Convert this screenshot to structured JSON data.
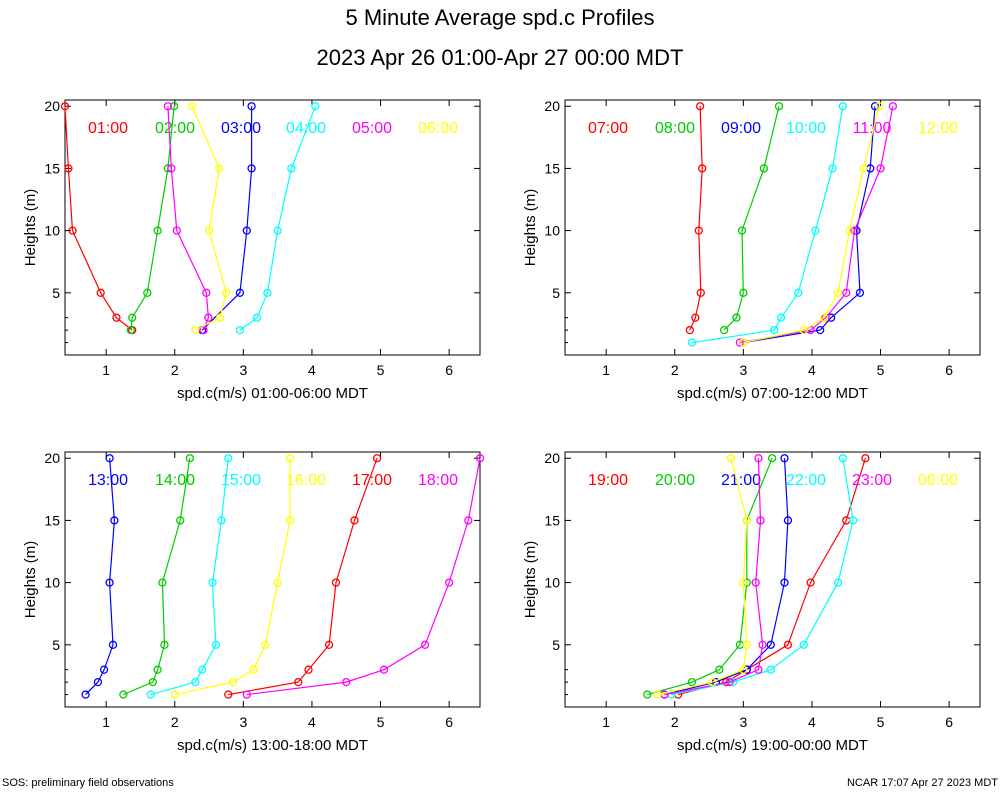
{
  "title": "5 Minute Average spd.c Profiles",
  "subtitle": "2023 Apr 26 01:00-Apr 27 00:00 MDT",
  "footer_left": "SOS: preliminary field observations",
  "footer_right": "NCAR 17:07 Apr 27 2023 MDT",
  "colors": {
    "red": "#ff0000",
    "green": "#00cc00",
    "blue": "#0000ff",
    "cyan": "#00ffff",
    "magenta": "#ff00ff",
    "yellow": "#ffff00"
  },
  "chart_data": [
    {
      "type": "line",
      "xlabel": "spd.c(m/s) 01:00-06:00 MDT",
      "ylabel": "Heights (m)",
      "xlim": [
        0.4,
        6.45
      ],
      "ylim": [
        0,
        20.5
      ],
      "xticks": [
        1,
        2,
        3,
        4,
        5,
        6
      ],
      "yticks": [
        5,
        10,
        15,
        20
      ],
      "heights": [
        1,
        2,
        3,
        5,
        10,
        15,
        20
      ],
      "series": [
        {
          "name": "01:00",
          "color": "#ff0000",
          "points": [
            [
              1.38,
              2
            ],
            [
              1.15,
              3
            ],
            [
              0.92,
              5
            ],
            [
              0.51,
              10
            ],
            [
              0.45,
              15
            ],
            [
              0.4,
              20
            ]
          ]
        },
        {
          "name": "02:00",
          "color": "#00cc00",
          "points": [
            [
              1.36,
              2
            ],
            [
              1.38,
              3
            ],
            [
              1.6,
              5
            ],
            [
              1.75,
              10
            ],
            [
              1.9,
              15
            ],
            [
              1.99,
              20
            ]
          ]
        },
        {
          "name": "03:00",
          "color": "#0000ff",
          "points": [
            [
              2.4,
              2
            ],
            [
              2.95,
              5
            ],
            [
              3.05,
              10
            ],
            [
              3.12,
              15
            ],
            [
              3.12,
              20
            ]
          ]
        },
        {
          "name": "04:00",
          "color": "#00ffff",
          "points": [
            [
              2.95,
              2
            ],
            [
              3.2,
              3
            ],
            [
              3.35,
              5
            ],
            [
              3.5,
              10
            ],
            [
              3.7,
              15
            ],
            [
              4.05,
              20
            ]
          ]
        },
        {
          "name": "05:00",
          "color": "#ff00ff",
          "points": [
            [
              2.42,
              2
            ],
            [
              2.49,
              3
            ],
            [
              2.46,
              5
            ],
            [
              2.03,
              10
            ],
            [
              1.95,
              15
            ],
            [
              1.9,
              20
            ]
          ]
        },
        {
          "name": "06:00",
          "color": "#ffff00",
          "points": [
            [
              2.3,
              2
            ],
            [
              2.66,
              3
            ],
            [
              2.75,
              5
            ],
            [
              2.5,
              10
            ],
            [
              2.65,
              15
            ],
            [
              2.25,
              20
            ]
          ]
        }
      ]
    },
    {
      "type": "line",
      "xlabel": "spd.c(m/s) 07:00-12:00 MDT",
      "ylabel": "Heights (m)",
      "xlim": [
        0.4,
        6.45
      ],
      "ylim": [
        0,
        20.5
      ],
      "xticks": [
        1,
        2,
        3,
        4,
        5,
        6
      ],
      "yticks": [
        5,
        10,
        15,
        20
      ],
      "heights": [
        1,
        2,
        3,
        5,
        10,
        15,
        20
      ],
      "series": [
        {
          "name": "07:00",
          "color": "#ff0000",
          "points": [
            [
              2.22,
              2
            ],
            [
              2.3,
              3
            ],
            [
              2.38,
              5
            ],
            [
              2.35,
              10
            ],
            [
              2.4,
              15
            ],
            [
              2.37,
              20
            ]
          ]
        },
        {
          "name": "08:00",
          "color": "#00cc00",
          "points": [
            [
              2.72,
              2
            ],
            [
              2.9,
              3
            ],
            [
              3.0,
              5
            ],
            [
              2.98,
              10
            ],
            [
              3.3,
              15
            ],
            [
              3.52,
              20
            ]
          ]
        },
        {
          "name": "09:00",
          "color": "#0000ff",
          "points": [
            [
              3.0,
              1
            ],
            [
              4.12,
              2
            ],
            [
              4.28,
              3
            ],
            [
              4.7,
              5
            ],
            [
              4.65,
              10
            ],
            [
              4.85,
              15
            ],
            [
              4.92,
              20
            ]
          ]
        },
        {
          "name": "10:00",
          "color": "#00ffff",
          "points": [
            [
              2.25,
              1
            ],
            [
              3.45,
              2
            ],
            [
              3.55,
              3
            ],
            [
              3.8,
              5
            ],
            [
              4.05,
              10
            ],
            [
              4.3,
              15
            ],
            [
              4.45,
              20
            ]
          ]
        },
        {
          "name": "11:00",
          "color": "#ff00ff",
          "points": [
            [
              2.95,
              1
            ],
            [
              3.98,
              2
            ],
            [
              4.2,
              3
            ],
            [
              4.5,
              5
            ],
            [
              4.62,
              10
            ],
            [
              5.0,
              15
            ],
            [
              5.18,
              20
            ]
          ]
        },
        {
          "name": "12:00",
          "color": "#ffff00",
          "points": [
            [
              3.0,
              1
            ],
            [
              3.88,
              2
            ],
            [
              4.18,
              3
            ],
            [
              4.38,
              5
            ],
            [
              4.55,
              10
            ],
            [
              4.75,
              15
            ],
            [
              4.98,
              20
            ]
          ]
        }
      ]
    },
    {
      "type": "line",
      "xlabel": "spd.c(m/s) 13:00-18:00 MDT",
      "ylabel": "Heights (m)",
      "xlim": [
        0.4,
        6.45
      ],
      "ylim": [
        0,
        20.5
      ],
      "xticks": [
        1,
        2,
        3,
        4,
        5,
        6
      ],
      "yticks": [
        5,
        10,
        15,
        20
      ],
      "heights": [
        1,
        2,
        3,
        5,
        10,
        15,
        20
      ],
      "series": [
        {
          "name": "13:00",
          "color": "#0000ff",
          "points": [
            [
              0.7,
              1
            ],
            [
              0.88,
              2
            ],
            [
              0.97,
              3
            ],
            [
              1.1,
              5
            ],
            [
              1.05,
              10
            ],
            [
              1.12,
              15
            ],
            [
              1.05,
              20
            ]
          ]
        },
        {
          "name": "14:00",
          "color": "#00cc00",
          "points": [
            [
              1.25,
              1
            ],
            [
              1.68,
              2
            ],
            [
              1.75,
              3
            ],
            [
              1.85,
              5
            ],
            [
              1.82,
              10
            ],
            [
              2.08,
              15
            ],
            [
              2.22,
              20
            ]
          ]
        },
        {
          "name": "15:00",
          "color": "#00ffff",
          "points": [
            [
              1.65,
              1
            ],
            [
              2.3,
              2
            ],
            [
              2.4,
              3
            ],
            [
              2.6,
              5
            ],
            [
              2.55,
              10
            ],
            [
              2.68,
              15
            ],
            [
              2.78,
              20
            ]
          ]
        },
        {
          "name": "16:00",
          "color": "#ffff00",
          "points": [
            [
              2.0,
              1
            ],
            [
              2.85,
              2
            ],
            [
              3.15,
              3
            ],
            [
              3.32,
              5
            ],
            [
              3.5,
              10
            ],
            [
              3.68,
              15
            ],
            [
              3.68,
              20
            ]
          ]
        },
        {
          "name": "17:00",
          "color": "#ff0000",
          "points": [
            [
              2.78,
              1
            ],
            [
              3.8,
              2
            ],
            [
              3.95,
              3
            ],
            [
              4.25,
              5
            ],
            [
              4.35,
              10
            ],
            [
              4.62,
              15
            ],
            [
              4.95,
              20
            ]
          ]
        },
        {
          "name": "18:00",
          "color": "#ff00ff",
          "points": [
            [
              3.05,
              1
            ],
            [
              4.5,
              2
            ],
            [
              5.05,
              3
            ],
            [
              5.65,
              5
            ],
            [
              6.0,
              10
            ],
            [
              6.28,
              15
            ],
            [
              6.45,
              20
            ]
          ]
        }
      ]
    },
    {
      "type": "line",
      "xlabel": "spd.c(m/s) 19:00-00:00 MDT",
      "ylabel": "Heights (m)",
      "xlim": [
        0.4,
        6.45
      ],
      "ylim": [
        0,
        20.5
      ],
      "xticks": [
        1,
        2,
        3,
        4,
        5,
        6
      ],
      "yticks": [
        5,
        10,
        15,
        20
      ],
      "heights": [
        1,
        2,
        3,
        5,
        10,
        15,
        20
      ],
      "series": [
        {
          "name": "19:00",
          "color": "#ff0000",
          "points": [
            [
              2.05,
              1
            ],
            [
              2.75,
              2
            ],
            [
              3.05,
              3
            ],
            [
              3.65,
              5
            ],
            [
              3.98,
              10
            ],
            [
              4.5,
              15
            ],
            [
              4.78,
              20
            ]
          ]
        },
        {
          "name": "20:00",
          "color": "#00cc00",
          "points": [
            [
              1.6,
              1
            ],
            [
              2.25,
              2
            ],
            [
              2.65,
              3
            ],
            [
              2.95,
              5
            ],
            [
              3.05,
              10
            ],
            [
              3.05,
              15
            ],
            [
              3.42,
              20
            ]
          ]
        },
        {
          "name": "21:00",
          "color": "#0000ff",
          "points": [
            [
              1.85,
              1
            ],
            [
              2.6,
              2
            ],
            [
              3.05,
              3
            ],
            [
              3.4,
              5
            ],
            [
              3.6,
              10
            ],
            [
              3.65,
              15
            ],
            [
              3.6,
              20
            ]
          ]
        },
        {
          "name": "22:00",
          "color": "#00ffff",
          "points": [
            [
              1.95,
              1
            ],
            [
              2.85,
              2
            ],
            [
              3.4,
              3
            ],
            [
              3.88,
              5
            ],
            [
              4.38,
              10
            ],
            [
              4.6,
              15
            ],
            [
              4.45,
              20
            ]
          ]
        },
        {
          "name": "23:00",
          "color": "#ff00ff",
          "points": [
            [
              1.85,
              1
            ],
            [
              2.8,
              2
            ],
            [
              3.22,
              3
            ],
            [
              3.28,
              5
            ],
            [
              3.18,
              10
            ],
            [
              3.25,
              15
            ],
            [
              3.22,
              20
            ]
          ]
        },
        {
          "name": "00:00",
          "color": "#ffff00",
          "points": [
            [
              1.75,
              1
            ],
            [
              2.55,
              2
            ],
            [
              3.0,
              3
            ],
            [
              3.05,
              5
            ],
            [
              3.0,
              10
            ],
            [
              3.05,
              15
            ],
            [
              2.82,
              20
            ]
          ]
        }
      ]
    }
  ]
}
